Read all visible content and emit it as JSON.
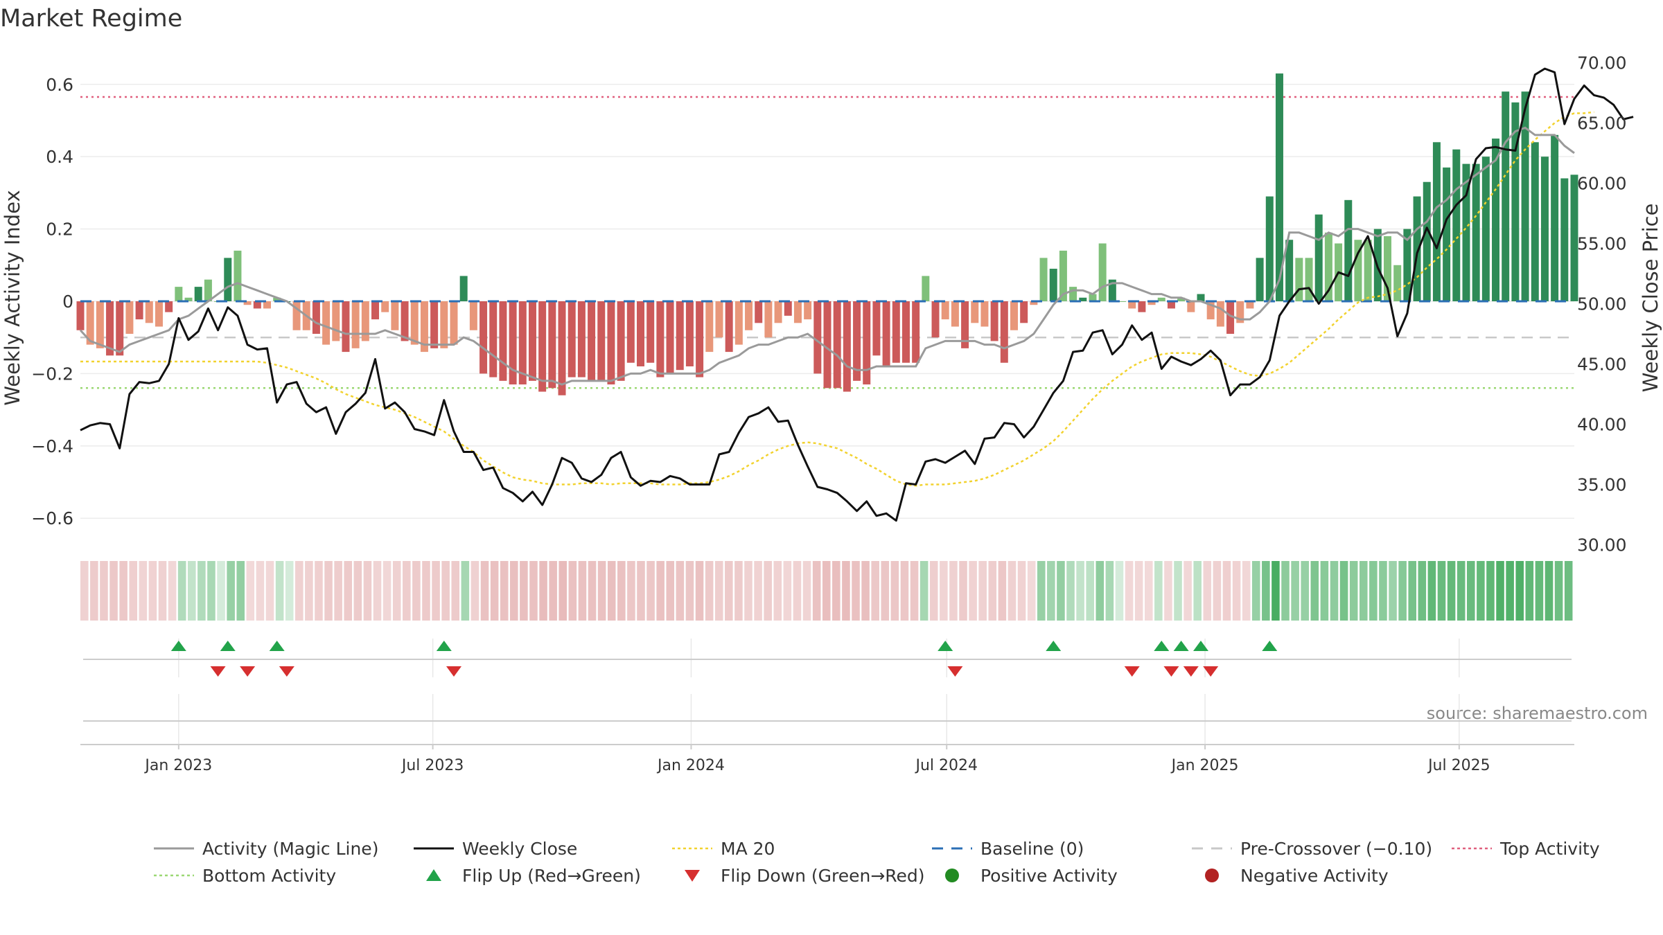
{
  "title": "Market Regime",
  "source": "source: sharemaestro.com",
  "colors": {
    "activity_line": "#9a9a9a",
    "close_line": "#111111",
    "ma20": "#f2d22e",
    "baseline": "#2b6fb5",
    "pre_crossover": "#c8c8c8",
    "top": "#e0607e",
    "bottom": "#9bd873",
    "pos_strong": "#2e8b57",
    "pos_weak": "#7fc07a",
    "neg_strong": "#cc5a5a",
    "neg_weak": "#e8977a",
    "flip_up": "#22a34a",
    "flip_down": "#d62f2f",
    "pos_dot": "#228b22",
    "neg_dot": "#b22222"
  },
  "chart_data": {
    "type": "bar",
    "x_start": "2022-10-23",
    "x_step_days": 7,
    "y_left": {
      "label": "Weekly Activity Index",
      "ticks": [
        "0.6",
        "0.4",
        "0.2",
        "0",
        "−0.2",
        "−0.4",
        "−0.6"
      ],
      "tick_values": [
        0.6,
        0.4,
        0.2,
        0,
        -0.2,
        -0.4,
        -0.6
      ],
      "lim": [
        -0.68,
        0.68
      ]
    },
    "y_right": {
      "label": "Weekly Close Price",
      "ticks": [
        "70.00",
        "65.00",
        "60.00",
        "55.00",
        "50.00",
        "45.00",
        "40.00",
        "35.00",
        "30.00"
      ],
      "tick_values": [
        70,
        65,
        60,
        55,
        50,
        45,
        40,
        35,
        30
      ],
      "lim": [
        29.8,
        70.6
      ]
    },
    "x_ticks": [
      "Jan 2023",
      "Jul 2023",
      "Jan 2024",
      "Jul 2024",
      "Jan 2025",
      "Jul 2025"
    ],
    "x_tick_dates": [
      "2023-01-01",
      "2023-07-01",
      "2024-01-01",
      "2024-07-01",
      "2025-01-01",
      "2025-07-01"
    ],
    "levels": {
      "baseline": 0,
      "pre_crossover": -0.1,
      "top": 0.565,
      "bottom": -0.24
    },
    "activity": [
      -0.08,
      -0.12,
      -0.13,
      -0.15,
      -0.15,
      -0.09,
      -0.05,
      -0.06,
      -0.07,
      -0.03,
      0.04,
      0.01,
      0.04,
      0.06,
      0.0,
      0.12,
      0.14,
      -0.01,
      -0.02,
      -0.02,
      0.01,
      0.0,
      -0.08,
      -0.08,
      -0.09,
      -0.12,
      -0.11,
      -0.14,
      -0.13,
      -0.11,
      -0.05,
      -0.03,
      -0.08,
      -0.11,
      -0.12,
      -0.14,
      -0.13,
      -0.13,
      -0.12,
      0.07,
      -0.08,
      -0.2,
      -0.21,
      -0.22,
      -0.23,
      -0.23,
      -0.22,
      -0.25,
      -0.24,
      -0.26,
      -0.21,
      -0.21,
      -0.22,
      -0.22,
      -0.23,
      -0.22,
      -0.17,
      -0.18,
      -0.17,
      -0.21,
      -0.2,
      -0.19,
      -0.18,
      -0.21,
      -0.14,
      -0.1,
      -0.14,
      -0.12,
      -0.08,
      -0.06,
      -0.1,
      -0.06,
      -0.04,
      -0.06,
      -0.05,
      -0.2,
      -0.24,
      -0.24,
      -0.25,
      -0.22,
      -0.23,
      -0.15,
      -0.18,
      -0.17,
      -0.17,
      -0.17,
      0.07,
      -0.1,
      -0.05,
      -0.07,
      -0.13,
      -0.06,
      -0.07,
      -0.11,
      -0.17,
      -0.08,
      -0.06,
      -0.01,
      0.12,
      0.09,
      0.14,
      0.04,
      0.01,
      0.02,
      0.16,
      0.06,
      0.0,
      -0.02,
      -0.03,
      -0.01,
      0.01,
      -0.02,
      0.01,
      -0.03,
      0.02,
      -0.05,
      -0.07,
      -0.09,
      -0.06,
      -0.02,
      0.12,
      0.29,
      0.63,
      0.17,
      0.12,
      0.12,
      0.24,
      0.19,
      0.16,
      0.28,
      0.17,
      0.17,
      0.2,
      0.18,
      0.1,
      0.2,
      0.29,
      0.33,
      0.44,
      0.37,
      0.42,
      0.38,
      0.38,
      0.4,
      0.45,
      0.58,
      0.55,
      0.58,
      0.44,
      0.4,
      0.46,
      0.34,
      0.35
    ],
    "activity_line": [
      -0.08,
      -0.11,
      -0.12,
      -0.13,
      -0.14,
      -0.12,
      -0.11,
      -0.1,
      -0.09,
      -0.08,
      -0.05,
      -0.04,
      -0.02,
      0.0,
      0.02,
      0.04,
      0.05,
      0.04,
      0.03,
      0.02,
      0.01,
      0.0,
      -0.02,
      -0.04,
      -0.06,
      -0.07,
      -0.08,
      -0.09,
      -0.09,
      -0.09,
      -0.09,
      -0.08,
      -0.09,
      -0.1,
      -0.11,
      -0.12,
      -0.12,
      -0.12,
      -0.12,
      -0.1,
      -0.11,
      -0.13,
      -0.15,
      -0.17,
      -0.19,
      -0.2,
      -0.21,
      -0.22,
      -0.22,
      -0.23,
      -0.22,
      -0.22,
      -0.22,
      -0.22,
      -0.22,
      -0.21,
      -0.2,
      -0.2,
      -0.19,
      -0.2,
      -0.2,
      -0.2,
      -0.2,
      -0.2,
      -0.19,
      -0.17,
      -0.16,
      -0.15,
      -0.13,
      -0.12,
      -0.12,
      -0.11,
      -0.1,
      -0.1,
      -0.09,
      -0.11,
      -0.13,
      -0.15,
      -0.18,
      -0.19,
      -0.19,
      -0.18,
      -0.18,
      -0.18,
      -0.18,
      -0.18,
      -0.13,
      -0.12,
      -0.11,
      -0.11,
      -0.11,
      -0.11,
      -0.12,
      -0.12,
      -0.13,
      -0.12,
      -0.11,
      -0.09,
      -0.05,
      -0.01,
      0.02,
      0.03,
      0.03,
      0.02,
      0.04,
      0.05,
      0.05,
      0.04,
      0.03,
      0.02,
      0.02,
      0.01,
      0.01,
      0.0,
      0.0,
      -0.01,
      -0.02,
      -0.04,
      -0.05,
      -0.05,
      -0.03,
      0.0,
      0.06,
      0.19,
      0.19,
      0.18,
      0.17,
      0.19,
      0.18,
      0.2,
      0.2,
      0.19,
      0.18,
      0.19,
      0.19,
      0.17,
      0.2,
      0.22,
      0.26,
      0.28,
      0.31,
      0.33,
      0.35,
      0.37,
      0.39,
      0.44,
      0.47,
      0.48,
      0.46,
      0.46,
      0.46,
      0.43,
      0.41
    ],
    "weekly_close": [
      39.5,
      39.9,
      40.1,
      40.0,
      38.0,
      42.5,
      43.5,
      43.4,
      43.6,
      45.0,
      48.8,
      47.0,
      47.7,
      49.6,
      47.8,
      49.7,
      49.0,
      46.6,
      46.2,
      46.3,
      41.8,
      43.3,
      43.5,
      41.7,
      41.0,
      41.4,
      39.2,
      41.0,
      41.7,
      42.6,
      45.4,
      41.3,
      41.8,
      41.0,
      39.6,
      39.4,
      39.1,
      42.0,
      39.4,
      37.7,
      37.7,
      36.2,
      36.4,
      34.7,
      34.3,
      33.6,
      34.4,
      33.3,
      35.0,
      37.2,
      36.8,
      35.5,
      35.2,
      35.8,
      37.2,
      37.7,
      35.6,
      34.9,
      35.3,
      35.2,
      35.7,
      35.5,
      35.0,
      35.0,
      35.0,
      37.5,
      37.7,
      39.3,
      40.6,
      40.9,
      41.4,
      40.2,
      40.3,
      38.3,
      36.5,
      34.8,
      34.6,
      34.3,
      33.6,
      32.8,
      33.6,
      32.4,
      32.6,
      32.0,
      35.1,
      35.0,
      36.9,
      37.1,
      36.8,
      37.3,
      37.8,
      36.7,
      38.8,
      38.9,
      40.1,
      40.0,
      38.9,
      39.8,
      41.2,
      42.6,
      43.6,
      46.0,
      46.1,
      47.6,
      47.8,
      45.8,
      46.6,
      48.2,
      47.0,
      47.6,
      44.6,
      45.6,
      45.2,
      44.9,
      45.4,
      46.1,
      45.3,
      42.4,
      43.3,
      43.3,
      43.9,
      45.3,
      49.0,
      50.2,
      51.2,
      51.3,
      50.0,
      51.1,
      52.6,
      52.3,
      54.2,
      55.6,
      53.0,
      51.3,
      47.3,
      49.2,
      54.2,
      56.3,
      54.6,
      57.0,
      58.2,
      59.0,
      62.0,
      62.9,
      63.0,
      62.8,
      62.7,
      66.2,
      69.0,
      69.5,
      69.2,
      64.9,
      67.0,
      68.1,
      67.3,
      67.1,
      66.5,
      65.3,
      65.5
    ],
    "ma20": [
      45.2,
      45.2,
      45.2,
      45.2,
      45.2,
      45.2,
      45.2,
      45.2,
      45.2,
      45.2,
      45.2,
      45.2,
      45.2,
      45.2,
      45.2,
      45.2,
      45.2,
      45.2,
      45.2,
      45.1,
      44.9,
      44.7,
      44.4,
      44.1,
      43.8,
      43.4,
      42.9,
      42.5,
      42.2,
      41.9,
      41.6,
      41.4,
      41.2,
      40.9,
      40.6,
      40.2,
      39.8,
      39.4,
      38.8,
      38.2,
      37.7,
      37.0,
      36.5,
      36.0,
      35.6,
      35.4,
      35.3,
      35.1,
      35.0,
      35.0,
      35.0,
      35.1,
      35.1,
      35.1,
      35.0,
      35.1,
      35.1,
      35.1,
      35.1,
      35.0,
      35.0,
      35.0,
      35.1,
      35.1,
      35.2,
      35.4,
      35.7,
      36.1,
      36.6,
      37.0,
      37.5,
      37.9,
      38.2,
      38.4,
      38.5,
      38.4,
      38.2,
      38.0,
      37.6,
      37.2,
      36.7,
      36.3,
      35.8,
      35.3,
      35.0,
      34.9,
      35.0,
      35.0,
      35.0,
      35.1,
      35.2,
      35.3,
      35.5,
      35.8,
      36.2,
      36.6,
      37.0,
      37.5,
      38.0,
      38.6,
      39.4,
      40.3,
      41.2,
      42.1,
      42.9,
      43.6,
      44.2,
      44.8,
      45.2,
      45.5,
      45.8,
      45.9,
      45.9,
      45.9,
      45.8,
      45.6,
      45.2,
      44.8,
      44.4,
      44.1,
      44.0,
      44.2,
      44.6,
      45.1,
      45.8,
      46.5,
      47.2,
      47.9,
      48.7,
      49.4,
      50.1,
      50.5,
      50.6,
      50.8,
      51.1,
      51.6,
      52.2,
      53.0,
      53.7,
      54.5,
      55.4,
      56.3,
      57.3,
      58.4,
      59.5,
      60.7,
      61.9,
      62.8,
      63.6,
      64.3,
      65.0,
      65.5,
      65.8,
      65.8,
      65.9
    ],
    "flip_up_idx": [
      10,
      15,
      20,
      37,
      88,
      99,
      110,
      112,
      114,
      121
    ],
    "flip_down_idx": [
      14,
      17,
      21,
      38,
      89,
      107,
      111,
      113,
      115
    ]
  },
  "legend": [
    {
      "label": "Activity (Magic Line)",
      "icon": "solid-line-icon",
      "color_key": "activity_line"
    },
    {
      "label": "Weekly Close",
      "icon": "solid-line-icon",
      "color_key": "close_line"
    },
    {
      "label": "MA 20",
      "icon": "dotted-line-icon",
      "color_key": "ma20"
    },
    {
      "label": "Baseline (0)",
      "icon": "dashed-line-icon",
      "color_key": "baseline"
    },
    {
      "label": "Pre-Crossover (−0.10)",
      "icon": "dashed-line-icon",
      "color_key": "pre_crossover"
    },
    {
      "label": "Top Activity",
      "icon": "dotted-line-icon",
      "color_key": "top"
    },
    {
      "label": "Bottom Activity",
      "icon": "dotted-line-icon",
      "color_key": "bottom"
    },
    {
      "label": "Flip Up (Red→Green)",
      "icon": "triangle-up-icon",
      "color_key": "flip_up"
    },
    {
      "label": "Flip Down (Green→Red)",
      "icon": "triangle-down-icon",
      "color_key": "flip_down"
    },
    {
      "label": "Positive Activity",
      "icon": "circle-icon",
      "color_key": "pos_dot"
    },
    {
      "label": "Negative Activity",
      "icon": "circle-icon",
      "color_key": "neg_dot"
    }
  ]
}
